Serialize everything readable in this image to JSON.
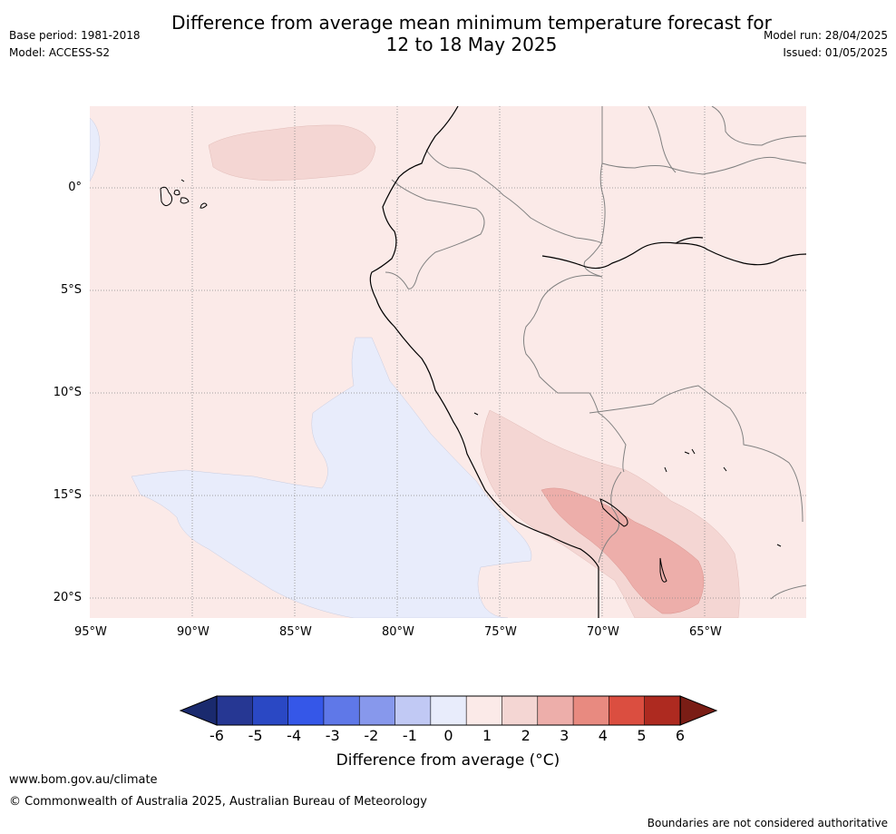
{
  "header": {
    "title_line1": "Difference from average mean minimum temperature forecast for",
    "title_line2": "12 to 18 May 2025",
    "base_period": "Base period: 1981-2018",
    "model": "Model: ACCESS-S2",
    "model_run": "Model run: 28/04/2025",
    "issued": "Issued: 01/05/2025"
  },
  "map": {
    "region": "Western South America",
    "lat_labels": [
      "0°",
      "5°S",
      "10°S",
      "15°S",
      "20°S"
    ],
    "lon_labels": [
      "95°W",
      "90°W",
      "85°W",
      "80°W",
      "75°W",
      "70°W",
      "65°W"
    ],
    "colors": {
      "anom_neg1_0": "#e8ecfb",
      "anom_0_1": "#fbeae8",
      "anom_1_2": "#f4d6d3",
      "anom_2_3": "#edaeaa",
      "coast": "#000000",
      "border": "#808080",
      "grid": "#888888"
    }
  },
  "colorbar": {
    "ticks": [
      "-6",
      "-5",
      "-4",
      "-3",
      "-2",
      "-1",
      "0",
      "1",
      "2",
      "3",
      "4",
      "5",
      "6"
    ],
    "colors": [
      "#263793",
      "#2a48c4",
      "#3557e8",
      "#5f78e8",
      "#8798ec",
      "#c1c9f4",
      "#e8ecfb",
      "#fbeae8",
      "#f4d6d3",
      "#edaeaa",
      "#e88a80",
      "#db4e40",
      "#ae2a20"
    ],
    "under_color": "#1a2a6e",
    "over_color": "#7a1d15",
    "label": "Difference from average (°C)"
  },
  "footer": {
    "website": "www.bom.gov.au/climate",
    "copyright": "© Commonwealth of Australia 2025, Australian Bureau of Meteorology",
    "disclaimer": "Boundaries are not considered authoritative"
  }
}
